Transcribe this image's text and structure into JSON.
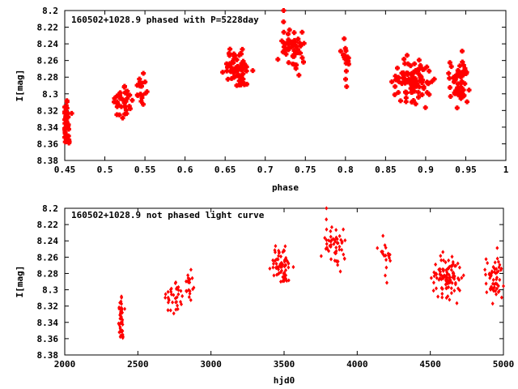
{
  "chart_data": [
    {
      "type": "scatter",
      "title": "160502+1028.9 phased with P=5228day",
      "xlabel": "phase",
      "ylabel": "I[mag]",
      "xlim": [
        0.45,
        1.0
      ],
      "ylim": [
        8.38,
        8.2
      ],
      "y_inverted": true,
      "xticks": [
        "0.45",
        "0.5",
        "0.55",
        "0.6",
        "0.65",
        "0.7",
        "0.75",
        "0.8",
        "0.85",
        "0.9",
        "0.95",
        "1"
      ],
      "yticks": [
        "8.2",
        "8.22",
        "8.24",
        "8.26",
        "8.28",
        "8.3",
        "8.32",
        "8.34",
        "8.36",
        "8.38"
      ],
      "grid": false,
      "marker_color": "#ff0000",
      "clusters": [
        {
          "x": 0.452,
          "xspread": 0.004,
          "y": 8.335,
          "yspread": 0.035,
          "n": 45
        },
        {
          "x": 0.523,
          "xspread": 0.01,
          "y": 8.31,
          "yspread": 0.025,
          "n": 32
        },
        {
          "x": 0.545,
          "xspread": 0.007,
          "y": 8.295,
          "yspread": 0.025,
          "n": 22
        },
        {
          "x": 0.665,
          "xspread": 0.014,
          "y": 8.27,
          "yspread": 0.03,
          "n": 70
        },
        {
          "x": 0.735,
          "xspread": 0.013,
          "y": 8.245,
          "yspread": 0.03,
          "n": 55
        },
        {
          "x": 0.8,
          "xspread": 0.004,
          "y": 8.26,
          "yspread": 0.03,
          "n": 18
        },
        {
          "x": 0.885,
          "xspread": 0.018,
          "y": 8.285,
          "yspread": 0.03,
          "n": 100
        },
        {
          "x": 0.94,
          "xspread": 0.01,
          "y": 8.285,
          "yspread": 0.028,
          "n": 55
        }
      ]
    },
    {
      "type": "scatter",
      "title": "160502+1028.9 not phased light curve",
      "xlabel": "hjd0",
      "ylabel": "I[mag]",
      "xlim": [
        2000,
        5000
      ],
      "ylim": [
        8.38,
        8.2
      ],
      "y_inverted": true,
      "xticks": [
        "2000",
        "2500",
        "3000",
        "3500",
        "4000",
        "4500",
        "5000"
      ],
      "yticks": [
        "8.2",
        "8.22",
        "8.24",
        "8.26",
        "8.28",
        "8.3",
        "8.32",
        "8.34",
        "8.36",
        "8.38"
      ],
      "grid": false,
      "marker_color": "#ff0000",
      "clusters": [
        {
          "x": 2385,
          "xspread": 15,
          "y": 8.335,
          "yspread": 0.035,
          "n": 45
        },
        {
          "x": 2750,
          "xspread": 55,
          "y": 8.31,
          "yspread": 0.025,
          "n": 32
        },
        {
          "x": 2850,
          "xspread": 30,
          "y": 8.295,
          "yspread": 0.025,
          "n": 22
        },
        {
          "x": 3480,
          "xspread": 60,
          "y": 8.27,
          "yspread": 0.03,
          "n": 70
        },
        {
          "x": 3850,
          "xspread": 65,
          "y": 8.245,
          "yspread": 0.03,
          "n": 55
        },
        {
          "x": 4190,
          "xspread": 35,
          "y": 8.26,
          "yspread": 0.03,
          "n": 18
        },
        {
          "x": 4620,
          "xspread": 75,
          "y": 8.285,
          "yspread": 0.03,
          "n": 100
        },
        {
          "x": 4930,
          "xspread": 50,
          "y": 8.285,
          "yspread": 0.028,
          "n": 55
        }
      ]
    }
  ]
}
